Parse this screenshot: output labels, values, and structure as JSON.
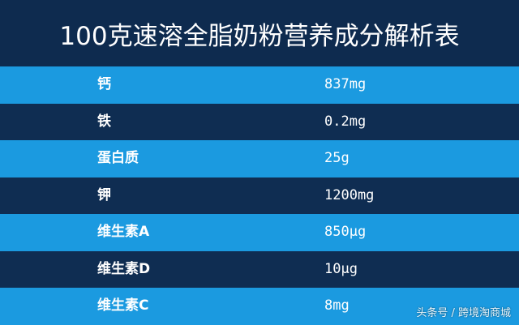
{
  "header": {
    "title": "100克速溶全脂奶粉营养成分解析表"
  },
  "table": {
    "rows": [
      [
        "钙",
        "837mg"
      ],
      [
        "铁",
        "0.2mg"
      ],
      [
        "蛋白质",
        "25g"
      ],
      [
        "钾",
        "1200mg"
      ],
      [
        "维生素A",
        "850μg"
      ],
      [
        "维生素D",
        "10μg"
      ],
      [
        "维生素C",
        "8mg"
      ]
    ]
  },
  "watermark": "头条号 / 跨境淘商城"
}
